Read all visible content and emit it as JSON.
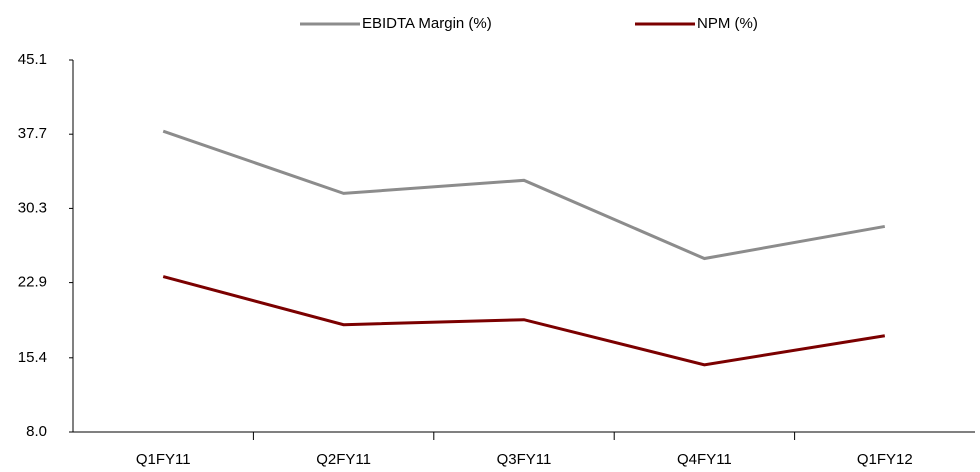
{
  "chart_data": {
    "type": "line",
    "categories": [
      "Q1FY11",
      "Q2FY11",
      "Q3FY11",
      "Q4FY11",
      "Q1FY12"
    ],
    "series": [
      {
        "name": "EBIDTA Margin (%)",
        "color": "#8c8c8c",
        "values": [
          38.0,
          31.8,
          33.1,
          25.3,
          28.5
        ]
      },
      {
        "name": "NPM (%)",
        "color": "#7b0000",
        "values": [
          23.5,
          18.7,
          19.2,
          14.7,
          17.6
        ]
      }
    ],
    "ylim": [
      8.0,
      45.1
    ],
    "yticks": [
      {
        "value": 8.0,
        "label": "8.0"
      },
      15.4,
      22.9,
      30.3,
      37.7,
      45.1
    ],
    "legend": "top"
  }
}
